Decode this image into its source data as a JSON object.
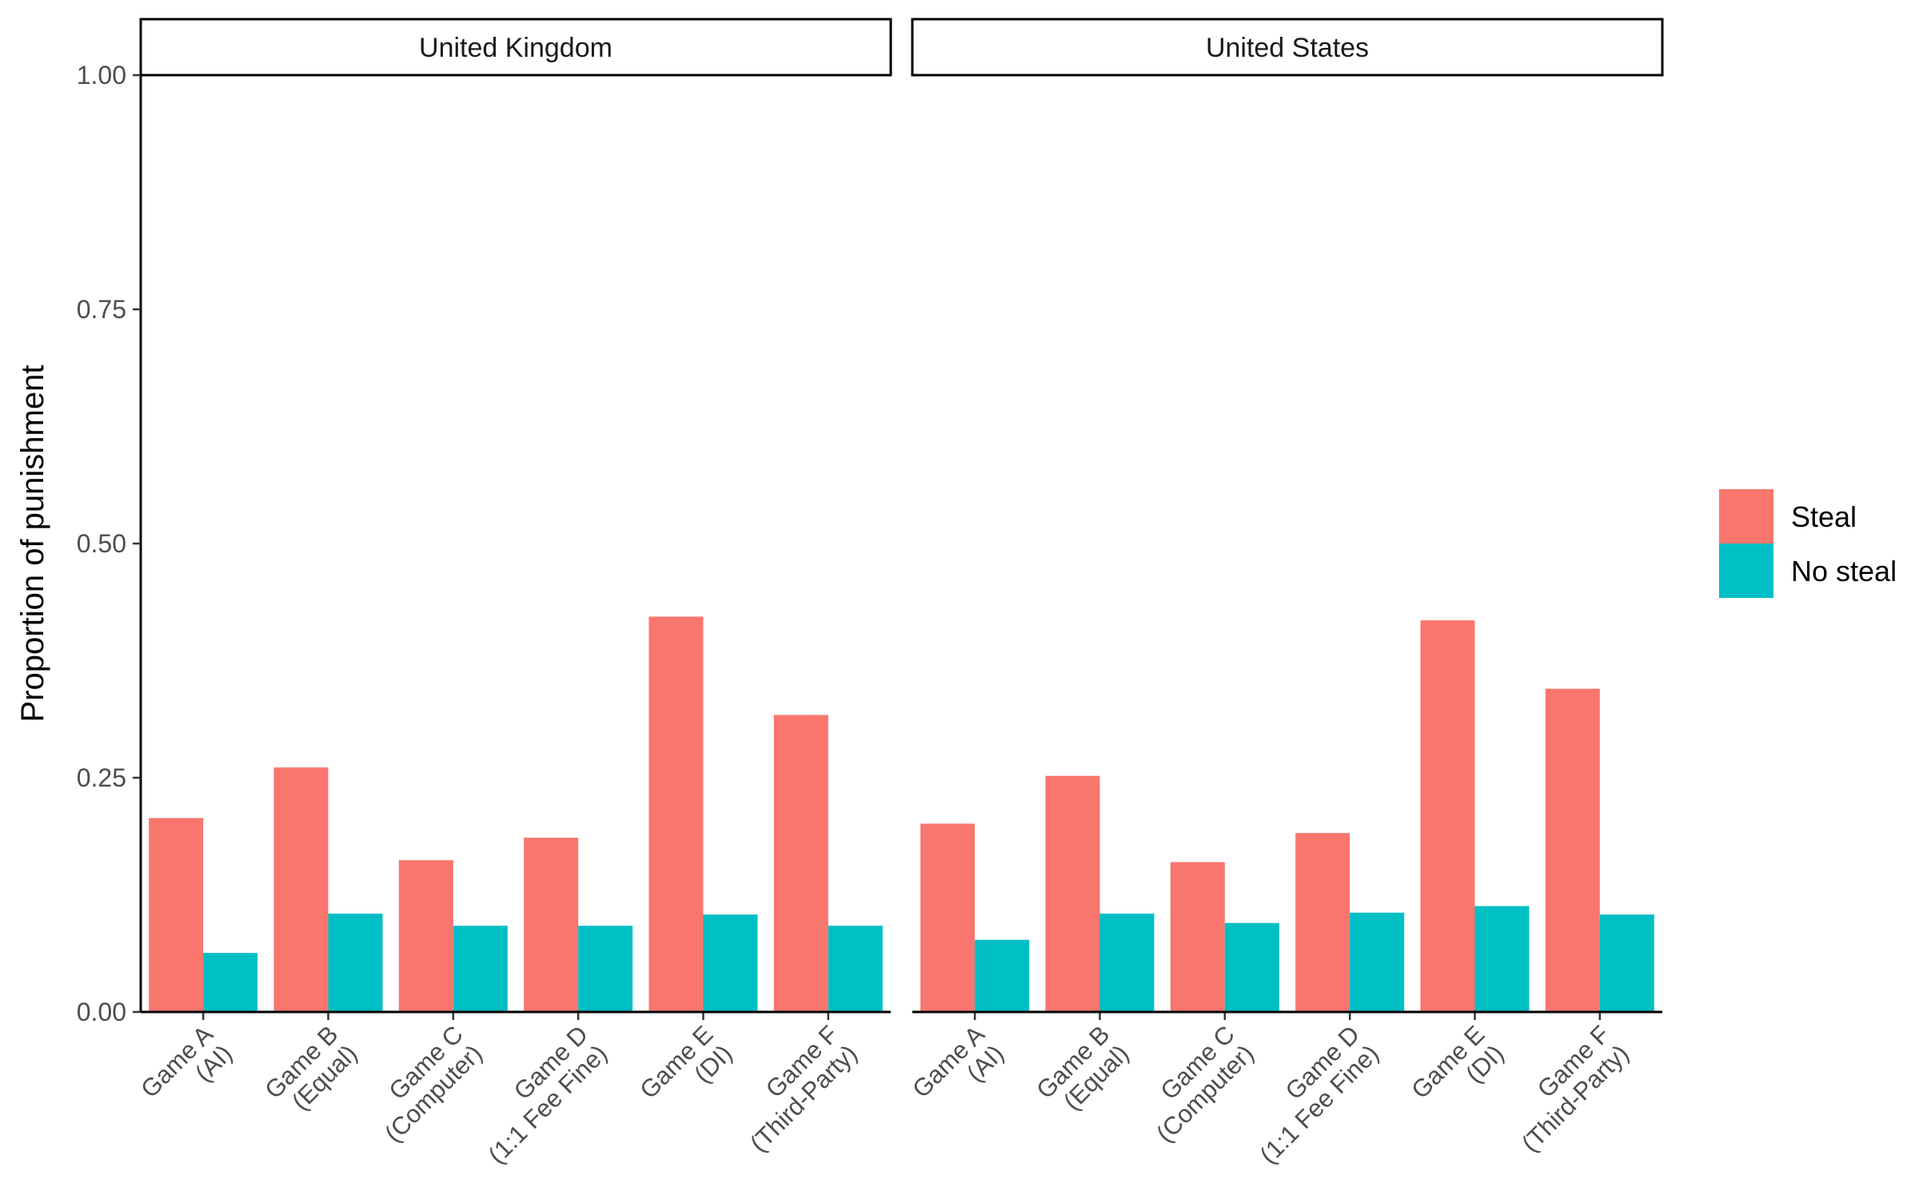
{
  "chart_data": {
    "type": "bar",
    "ylabel": "Proportion of punishment",
    "xlabel": "",
    "ylim": [
      0,
      1
    ],
    "yticks": [
      "0.00",
      "0.25",
      "0.50",
      "0.75",
      "1.00"
    ],
    "ytick_values": [
      0,
      0.25,
      0.5,
      0.75,
      1.0
    ],
    "categories": [
      [
        "Game A",
        "(AI)"
      ],
      [
        "Game B",
        "(Equal)"
      ],
      [
        "Game C",
        "(Computer)"
      ],
      [
        "Game D",
        "(1:1 Fee Fine)"
      ],
      [
        "Game E",
        "(DI)"
      ],
      [
        "Game F",
        "(Third-Party)"
      ]
    ],
    "legend": {
      "position": "right",
      "entries": [
        {
          "name": "Steal",
          "color": "#F8766D"
        },
        {
          "name": "No steal",
          "color": "#00BFC4"
        }
      ]
    },
    "panels": [
      {
        "title": "United Kingdom",
        "series": [
          {
            "name": "Steal",
            "values": [
              0.207,
              0.261,
              0.162,
              0.186,
              0.422,
              0.317
            ]
          },
          {
            "name": "No steal",
            "values": [
              0.063,
              0.105,
              0.092,
              0.092,
              0.104,
              0.092
            ]
          }
        ]
      },
      {
        "title": "United States",
        "series": [
          {
            "name": "Steal",
            "values": [
              0.201,
              0.252,
              0.16,
              0.191,
              0.418,
              0.345
            ]
          },
          {
            "name": "No steal",
            "values": [
              0.077,
              0.105,
              0.095,
              0.106,
              0.113,
              0.104
            ]
          }
        ]
      }
    ]
  }
}
